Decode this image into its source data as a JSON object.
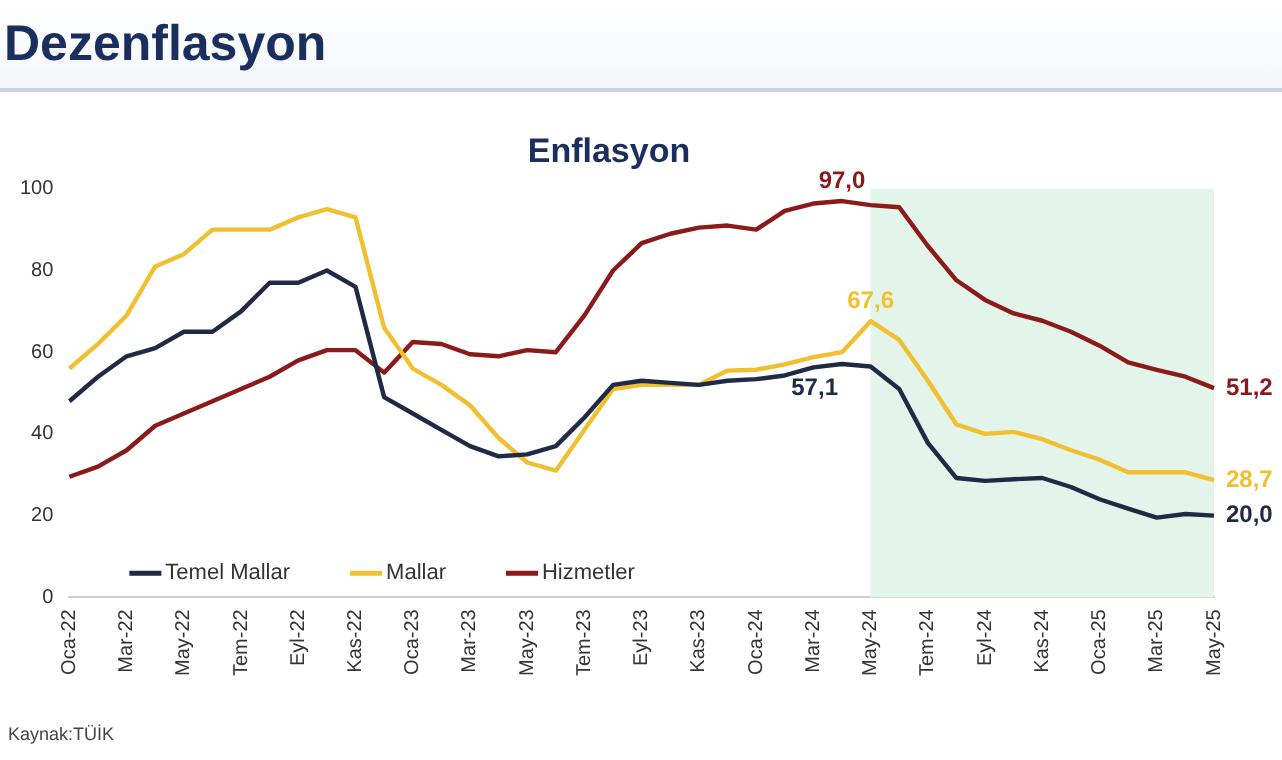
{
  "chart_data": {
    "type": "line",
    "title": "Dezenflasyon",
    "subtitle": "Enflasyon",
    "categories": [
      "Oca-22",
      null,
      "Mar-22",
      null,
      "May-22",
      null,
      "Tem-22",
      null,
      "Eyl-22",
      null,
      "Kas-22",
      null,
      "Oca-23",
      null,
      "Mar-23",
      null,
      "May-23",
      null,
      "Tem-23",
      null,
      "Eyl-23",
      null,
      "Kas-23",
      null,
      "Oca-24",
      null,
      "Mar-24",
      null,
      "May-24",
      null,
      "Tem-24",
      null,
      "Eyl-24",
      null,
      "Kas-24",
      null,
      "Oca-25",
      null,
      "Mar-25",
      null,
      "May-25"
    ],
    "series": [
      {
        "name": "Temel Mallar",
        "color": "#1f2a44",
        "values": [
          48,
          54,
          59,
          61,
          65,
          65,
          70,
          77,
          77,
          80,
          76,
          49,
          45,
          41,
          37,
          34.5,
          35,
          37,
          44,
          52,
          53,
          52.5,
          52,
          53,
          53.4,
          54.3,
          56.3,
          57.1,
          56.5,
          51,
          37.8,
          29.2,
          28.5,
          28.9,
          29.2,
          27,
          24,
          21.7,
          19.5,
          20.4,
          20.0
        ],
        "value_labels": [
          null,
          null,
          null,
          null,
          null,
          null,
          null,
          null,
          null,
          null,
          null,
          null,
          null,
          null,
          null,
          null,
          null,
          null,
          null,
          null,
          null,
          null,
          null,
          null,
          null,
          null,
          null,
          "57,1",
          null,
          null,
          null,
          null,
          null,
          null,
          null,
          null,
          null,
          null,
          null,
          null,
          "20,0"
        ]
      },
      {
        "name": "Mallar",
        "color": "#f0c030",
        "values": [
          56,
          62,
          69,
          81,
          84,
          90,
          90,
          90,
          93,
          95,
          93,
          66,
          56,
          52,
          47,
          39,
          33,
          31,
          41,
          51,
          52,
          52,
          52,
          55.5,
          55.7,
          57,
          58.8,
          60,
          67.6,
          63,
          53,
          42.3,
          40,
          40.5,
          38.7,
          36,
          33.7,
          30.6,
          30.6,
          30.6,
          28.7
        ],
        "value_labels": [
          null,
          null,
          null,
          null,
          null,
          null,
          null,
          null,
          null,
          null,
          null,
          null,
          null,
          null,
          null,
          null,
          null,
          null,
          null,
          null,
          null,
          null,
          null,
          null,
          null,
          null,
          null,
          null,
          "67,6",
          null,
          null,
          null,
          null,
          null,
          null,
          null,
          null,
          null,
          null,
          null,
          "28,7"
        ]
      },
      {
        "name": "Hizmetler",
        "color": "#8b1a1a",
        "values": [
          29.5,
          32,
          36,
          42,
          45,
          48,
          51,
          54,
          58,
          60.5,
          60.5,
          55,
          62.5,
          62,
          59.5,
          59,
          60.5,
          60,
          69,
          80,
          86.7,
          89,
          90.5,
          91,
          90,
          94.6,
          96.4,
          97.0,
          96,
          95.5,
          86,
          77.6,
          72.8,
          69.5,
          67.7,
          65,
          61.6,
          57.5,
          55.7,
          54,
          51.2
        ],
        "value_labels": [
          null,
          null,
          null,
          null,
          null,
          null,
          null,
          null,
          null,
          null,
          null,
          null,
          null,
          null,
          null,
          null,
          null,
          null,
          null,
          null,
          null,
          null,
          null,
          null,
          null,
          null,
          null,
          "97,0",
          null,
          null,
          null,
          null,
          null,
          null,
          null,
          null,
          null,
          null,
          null,
          null,
          "51,2"
        ]
      }
    ],
    "ylim": [
      0,
      100
    ],
    "yticks": [
      0,
      20,
      40,
      60,
      80,
      100
    ],
    "grid": false,
    "legend": "bottom left",
    "marker": "none",
    "line_style": "solid",
    "bands": [
      {
        "axis": "x",
        "from": "May-24",
        "to": "May-25",
        "color": "#e3f4ea"
      }
    ],
    "annotations": [
      "Kaynak:TÜİK"
    ]
  }
}
